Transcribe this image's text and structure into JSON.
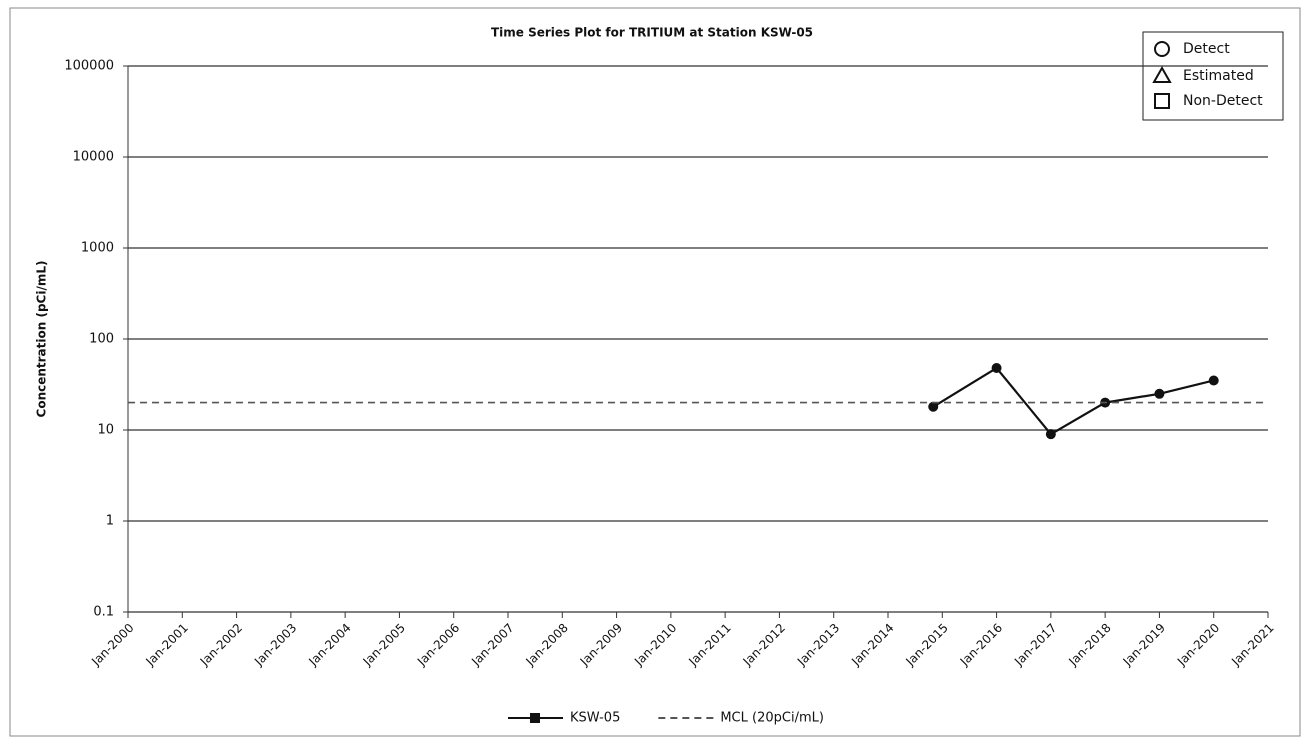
{
  "chart_data": {
    "type": "line",
    "title": "Time Series Plot for TRITIUM at Station KSW-05",
    "y_label": "Concentration (pCi/mL)",
    "log_y": true,
    "grid": true,
    "ylim": [
      0.1,
      100000
    ],
    "yticks": [
      0.1,
      1,
      10,
      100,
      1000,
      10000,
      100000
    ],
    "xlim": [
      "2000-01",
      "2021-01"
    ],
    "xticks": [
      {
        "value": "2000-01",
        "label": "Jan-2000"
      },
      {
        "value": "2001-01",
        "label": "Jan-2001"
      },
      {
        "value": "2002-01",
        "label": "Jan-2002"
      },
      {
        "value": "2003-01",
        "label": "Jan-2003"
      },
      {
        "value": "2004-01",
        "label": "Jan-2004"
      },
      {
        "value": "2005-01",
        "label": "Jan-2005"
      },
      {
        "value": "2006-01",
        "label": "Jan-2006"
      },
      {
        "value": "2007-01",
        "label": "Jan-2007"
      },
      {
        "value": "2008-01",
        "label": "Jan-2008"
      },
      {
        "value": "2009-01",
        "label": "Jan-2009"
      },
      {
        "value": "2010-01",
        "label": "Jan-2010"
      },
      {
        "value": "2011-01",
        "label": "Jan-2011"
      },
      {
        "value": "2012-01",
        "label": "Jan-2012"
      },
      {
        "value": "2013-01",
        "label": "Jan-2013"
      },
      {
        "value": "2014-01",
        "label": "Jan-2014"
      },
      {
        "value": "2015-01",
        "label": "Jan-2015"
      },
      {
        "value": "2016-01",
        "label": "Jan-2016"
      },
      {
        "value": "2017-01",
        "label": "Jan-2017"
      },
      {
        "value": "2018-01",
        "label": "Jan-2018"
      },
      {
        "value": "2019-01",
        "label": "Jan-2019"
      },
      {
        "value": "2020-01",
        "label": "Jan-2020"
      },
      {
        "value": "2021-01",
        "label": "Jan-2021"
      }
    ],
    "series": [
      {
        "name": "KSW-05",
        "color": "#111111",
        "dashed": false,
        "x": [
          "2014-11",
          "2016-01",
          "2017-01",
          "2018-01",
          "2019-01",
          "2020-01"
        ],
        "values": [
          18,
          48,
          9,
          20,
          25,
          35
        ]
      },
      {
        "name": "MCL (20pCi/mL)",
        "color": "#555555",
        "dashed": true,
        "x": [
          "2000-01",
          "2021-01"
        ],
        "values": [
          20,
          20
        ]
      }
    ],
    "symbol_legend": [
      "Detect",
      "Estimated",
      "Non-Detect"
    ]
  }
}
